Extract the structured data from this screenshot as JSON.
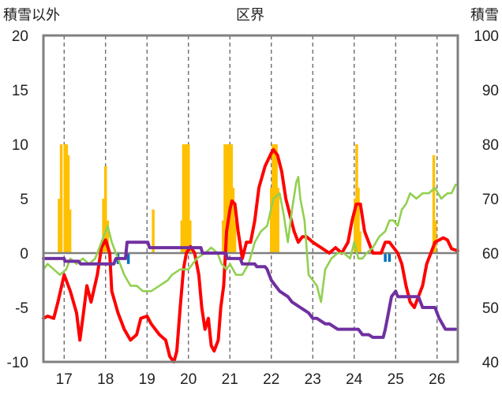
{
  "chart_data": {
    "type": "line",
    "title": "区界",
    "left_axis_label": "積雪以外",
    "right_axis_label": "積雪",
    "left_ylim": [
      -10,
      20
    ],
    "left_ticks": [
      -10,
      -5,
      0,
      5,
      10,
      15,
      20
    ],
    "right_ylim": [
      40,
      100
    ],
    "right_ticks": [
      40,
      50,
      60,
      70,
      80,
      90,
      100
    ],
    "xlim": [
      16.5,
      26.5
    ],
    "x_ticks": [
      17,
      18,
      19,
      20,
      21,
      22,
      23,
      24,
      25,
      26
    ],
    "grid": "vertical dashed",
    "colors": {
      "red": "#ff0000",
      "green": "#92d050",
      "purple": "#7030a0",
      "orange": "#ffc000",
      "blue": "#0070c0",
      "frame": "#808080"
    },
    "series": [
      {
        "color": "red",
        "axis": "left",
        "style": "line",
        "x": [
          16.5,
          16.6,
          16.75,
          16.85,
          17.0,
          17.15,
          17.3,
          17.38,
          17.45,
          17.55,
          17.65,
          17.8,
          17.9,
          18.0,
          18.1,
          18.15,
          18.3,
          18.45,
          18.6,
          18.75,
          18.85,
          19.0,
          19.1,
          19.2,
          19.3,
          19.45,
          19.55,
          19.65,
          19.72,
          19.8,
          19.88,
          19.95,
          20.0,
          20.05,
          20.15,
          20.25,
          20.32,
          20.4,
          20.48,
          20.55,
          20.62,
          20.72,
          20.78,
          20.85,
          20.92,
          21.0,
          21.05,
          21.12,
          21.2,
          21.3,
          21.4,
          21.5,
          21.6,
          21.7,
          21.85,
          22.0,
          22.05,
          22.15,
          22.25,
          22.35,
          22.45,
          22.55,
          22.65,
          22.75,
          22.85,
          23.0,
          23.2,
          23.4,
          23.55,
          23.7,
          23.85,
          23.95,
          24.05,
          24.15,
          24.25,
          24.35,
          24.45,
          24.55,
          24.65,
          24.75,
          24.85,
          24.95,
          25.05,
          25.15,
          25.25,
          25.35,
          25.45,
          25.55,
          25.65,
          25.75,
          25.85,
          25.95,
          26.05,
          26.15,
          26.25,
          26.35,
          26.5
        ],
        "values": [
          -6,
          -5.8,
          -6,
          -4.5,
          -2,
          -3.5,
          -5.5,
          -8,
          -6,
          -3,
          -4.5,
          -2,
          0.5,
          1.2,
          0,
          -3.5,
          -5.5,
          -7,
          -8,
          -7.5,
          -6,
          -5.8,
          -6.5,
          -7,
          -7.5,
          -8,
          -9.5,
          -10,
          -9,
          -5,
          -1.5,
          0,
          0.3,
          0.6,
          0,
          -2,
          -5,
          -7,
          -6,
          -8.5,
          -9,
          -8,
          -5,
          -3,
          2,
          4,
          4.8,
          4.5,
          2,
          -0.5,
          1,
          1,
          3,
          6,
          8,
          9.2,
          9.5,
          9,
          7.5,
          5,
          3.5,
          2,
          1,
          1.5,
          1.5,
          1,
          0.5,
          0,
          0.5,
          0,
          1,
          3,
          4.5,
          4.5,
          2,
          1,
          0,
          0,
          0,
          1,
          1,
          0.5,
          0,
          -1,
          -3,
          -4.5,
          -5,
          -4,
          -3,
          -1,
          0,
          1,
          1.2,
          1.4,
          1.2,
          0.4,
          0.2
        ]
      },
      {
        "color": "green",
        "axis": "left",
        "style": "line",
        "x": [
          16.5,
          16.6,
          16.75,
          16.9,
          17.05,
          17.15,
          17.3,
          17.45,
          17.6,
          17.75,
          17.85,
          18.0,
          18.05,
          18.15,
          18.3,
          18.45,
          18.6,
          18.75,
          18.9,
          19.1,
          19.3,
          19.5,
          19.6,
          19.8,
          20.0,
          20.2,
          20.4,
          20.55,
          20.7,
          20.8,
          20.92,
          21.0,
          21.15,
          21.3,
          21.45,
          21.6,
          21.75,
          21.9,
          22.05,
          22.2,
          22.3,
          22.4,
          22.5,
          22.6,
          22.65,
          22.7,
          22.8,
          22.9,
          23.0,
          23.1,
          23.2,
          23.3,
          23.45,
          23.6,
          23.75,
          23.9,
          24.0,
          24.1,
          24.2,
          24.3,
          24.45,
          24.6,
          24.75,
          24.85,
          24.95,
          25.05,
          25.15,
          25.25,
          25.35,
          25.5,
          25.65,
          25.8,
          25.95,
          26.1,
          26.25,
          26.35,
          26.45
        ],
        "values": [
          -1.5,
          -1,
          -1.5,
          -2,
          -1.5,
          -0.5,
          -1,
          -0.5,
          -1,
          -0.5,
          0.5,
          2,
          2.5,
          1,
          -0.5,
          -2,
          -3,
          -3,
          -3.5,
          -3.5,
          -3,
          -2.5,
          -2,
          -1.5,
          -1.5,
          -0.5,
          0,
          0.5,
          0,
          -1,
          -1.5,
          -1,
          -2,
          -2,
          -1,
          1,
          2,
          2.5,
          5,
          5.5,
          3.5,
          1,
          4,
          6.5,
          7,
          5,
          3,
          -2,
          -2.5,
          -3,
          -4.5,
          -1.5,
          -0.5,
          0,
          0,
          -0.5,
          1,
          -0.5,
          -0.5,
          0,
          0.5,
          1.5,
          2,
          3,
          3,
          2.5,
          4,
          4.5,
          5.5,
          5,
          5.5,
          5.5,
          6,
          5,
          5.5,
          5.5,
          6.3
        ]
      },
      {
        "color": "purple",
        "axis": "right",
        "style": "step",
        "x": [
          16.5,
          17.0,
          17.02,
          17.35,
          17.4,
          18.2,
          18.25,
          18.48,
          18.52,
          19.02,
          19.06,
          20.3,
          20.34,
          20.9,
          20.94,
          21.25,
          21.3,
          21.6,
          21.65,
          21.85,
          21.9,
          21.95,
          22.0,
          22.1,
          22.2,
          22.3,
          22.4,
          22.5,
          22.6,
          22.7,
          22.8,
          22.9,
          23.0,
          23.1,
          23.3,
          23.4,
          23.6,
          24.1,
          24.2,
          24.35,
          24.45,
          24.7,
          24.75,
          24.8,
          24.85,
          24.9,
          25.0,
          25.05,
          25.55,
          25.65,
          25.95,
          26.05,
          26.2,
          26.45
        ],
        "values": [
          59,
          59,
          58.5,
          58.5,
          58,
          58,
          59,
          59,
          62,
          62,
          61,
          61,
          60,
          60,
          59,
          59,
          58,
          58,
          57.5,
          57.5,
          57,
          56,
          55,
          54,
          53,
          52.5,
          52,
          51,
          50.5,
          50,
          49.5,
          49,
          48,
          48,
          47,
          47,
          46,
          46,
          45,
          45,
          44.5,
          44.5,
          46,
          48,
          50,
          52,
          53,
          52,
          52,
          50,
          50,
          48,
          46,
          46
        ]
      }
    ],
    "bars_orange": [
      {
        "x": 16.88,
        "value": 5
      },
      {
        "x": 16.93,
        "value": 10
      },
      {
        "x": 17.02,
        "value": 10
      },
      {
        "x": 17.06,
        "value": 10
      },
      {
        "x": 17.1,
        "value": 9
      },
      {
        "x": 17.14,
        "value": 4
      },
      {
        "x": 17.95,
        "value": 5
      },
      {
        "x": 18.0,
        "value": 8
      },
      {
        "x": 18.05,
        "value": 3
      },
      {
        "x": 19.15,
        "value": 4
      },
      {
        "x": 19.84,
        "value": 3
      },
      {
        "x": 19.88,
        "value": 10
      },
      {
        "x": 19.92,
        "value": 10
      },
      {
        "x": 19.96,
        "value": 10
      },
      {
        "x": 20.0,
        "value": 10
      },
      {
        "x": 20.04,
        "value": 3
      },
      {
        "x": 20.84,
        "value": 3
      },
      {
        "x": 20.88,
        "value": 10
      },
      {
        "x": 20.92,
        "value": 10
      },
      {
        "x": 20.96,
        "value": 10
      },
      {
        "x": 21.0,
        "value": 10
      },
      {
        "x": 21.04,
        "value": 10
      },
      {
        "x": 21.08,
        "value": 6
      },
      {
        "x": 21.12,
        "value": 3
      },
      {
        "x": 22.0,
        "value": 6
      },
      {
        "x": 22.04,
        "value": 10
      },
      {
        "x": 22.08,
        "value": 10
      },
      {
        "x": 22.12,
        "value": 10
      },
      {
        "x": 22.16,
        "value": 6
      },
      {
        "x": 24.02,
        "value": 5
      },
      {
        "x": 24.06,
        "value": 10
      },
      {
        "x": 24.1,
        "value": 6
      },
      {
        "x": 24.14,
        "value": 2
      },
      {
        "x": 25.92,
        "value": 9
      },
      {
        "x": 25.96,
        "value": 3
      }
    ],
    "bars_blue": [
      {
        "x": 18.3,
        "value": -1
      },
      {
        "x": 18.55,
        "value": -1
      },
      {
        "x": 24.75,
        "value": -0.8
      },
      {
        "x": 24.85,
        "value": -0.8
      }
    ]
  }
}
